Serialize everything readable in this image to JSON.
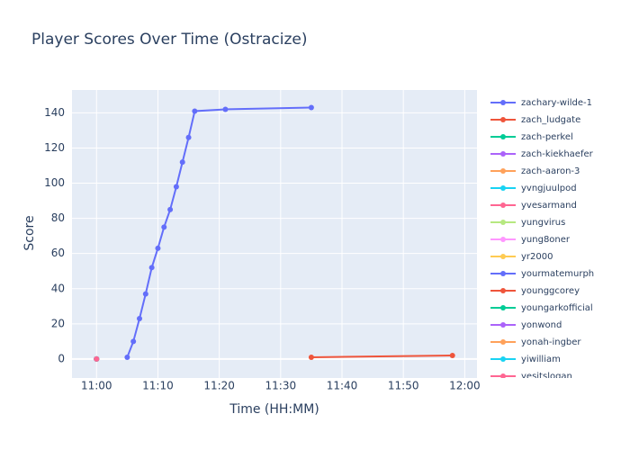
{
  "chart_data": {
    "type": "line",
    "title": "Player Scores Over Time (Ostracize)",
    "x_label": "Time (HH:MM)",
    "y_label": "Score",
    "xlim": [
      "10:56",
      "12:02"
    ],
    "xticks": [
      "11:00",
      "11:10",
      "11:20",
      "11:30",
      "11:40",
      "11:50",
      "12:00"
    ],
    "ylim": [
      -10.8,
      153
    ],
    "yticks": [
      0,
      20,
      40,
      60,
      80,
      100,
      120,
      140
    ],
    "grid": true,
    "legend": "right",
    "series": [
      {
        "name": "zachary-wilde-1",
        "color": "#636efa",
        "x": [
          "11:05",
          "11:06",
          "11:07",
          "11:08",
          "11:09",
          "11:10",
          "11:11",
          "11:12",
          "11:13",
          "11:14",
          "11:15",
          "11:16",
          "11:21",
          "11:35"
        ],
        "values": [
          1,
          10,
          23,
          37,
          52,
          63,
          75,
          85,
          98,
          112,
          126,
          141,
          142,
          143
        ]
      },
      {
        "name": "zach_ludgate",
        "color": "#EF553B",
        "x": [
          "11:00"
        ],
        "values": [
          0
        ]
      },
      {
        "name": "zach-perkel",
        "color": "#00cc96",
        "x": [
          "11:00"
        ],
        "values": [
          0
        ]
      },
      {
        "name": "zach-kiekhaefer",
        "color": "#ab63fa",
        "x": [
          "11:00"
        ],
        "values": [
          0
        ]
      },
      {
        "name": "zach-aaron-3",
        "color": "#FFA15A",
        "x": [
          "11:00"
        ],
        "values": [
          0
        ]
      },
      {
        "name": "yvngjuulpod",
        "color": "#19d3f3",
        "x": [
          "11:00"
        ],
        "values": [
          0
        ]
      },
      {
        "name": "yvesarmand",
        "color": "#FF6692",
        "x": [
          "11:00"
        ],
        "values": [
          0
        ]
      },
      {
        "name": "yungvirus",
        "color": "#B6E880",
        "x": [
          "11:00"
        ],
        "values": [
          0
        ]
      },
      {
        "name": "yung8oner",
        "color": "#FF97FF",
        "x": [
          "11:00"
        ],
        "values": [
          0
        ]
      },
      {
        "name": "yr2000",
        "color": "#FECB52",
        "x": [
          "11:00"
        ],
        "values": [
          0
        ]
      },
      {
        "name": "yourmatemurph",
        "color": "#636efa",
        "x": [
          "11:00"
        ],
        "values": [
          0
        ]
      },
      {
        "name": "younggcorey",
        "color": "#EF553B",
        "x": [
          "11:35",
          "11:58"
        ],
        "values": [
          1,
          2
        ]
      },
      {
        "name": "youngarkofficial",
        "color": "#00cc96",
        "x": [
          "11:00"
        ],
        "values": [
          0
        ]
      },
      {
        "name": "yonwond",
        "color": "#ab63fa",
        "x": [
          "11:00"
        ],
        "values": [
          0
        ]
      },
      {
        "name": "yonah-ingber",
        "color": "#FFA15A",
        "x": [
          "11:00"
        ],
        "values": [
          0
        ]
      },
      {
        "name": "yiwilliam",
        "color": "#19d3f3",
        "x": [
          "11:00"
        ],
        "values": [
          0
        ]
      },
      {
        "name": "yesitslogan",
        "color": "#FF6692",
        "x": [
          "11:00"
        ],
        "values": [
          0
        ]
      }
    ]
  }
}
